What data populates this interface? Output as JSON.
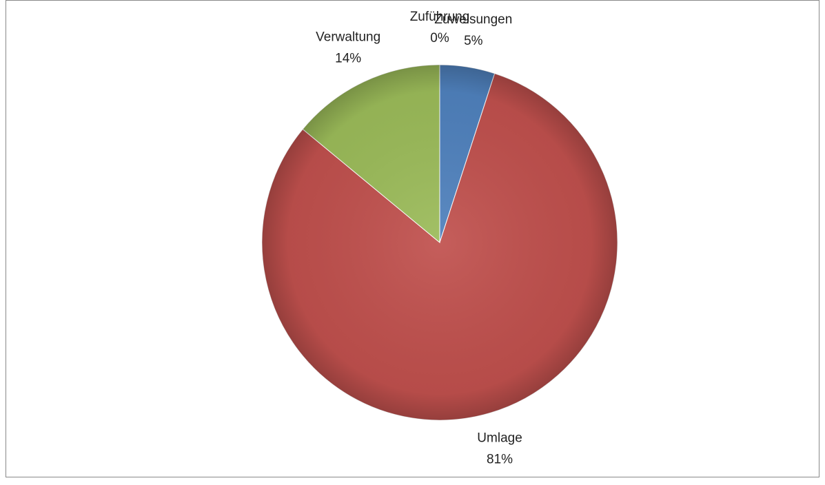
{
  "chart_data": {
    "type": "pie",
    "categories": [
      "Zuweisungen",
      "Umlage",
      "Verwaltung",
      "Zuführung"
    ],
    "values": [
      5,
      81,
      14,
      0
    ],
    "value_labels": [
      "5%",
      "81%",
      "14%",
      "0%"
    ],
    "colors": [
      "#4f81bd",
      "#c0504d",
      "#9bbb59",
      "#8064a2"
    ]
  }
}
